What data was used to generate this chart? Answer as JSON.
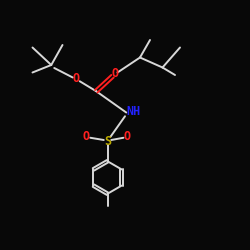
{
  "bg_color": "#080808",
  "line_color": "#d8d8d8",
  "oxygen_color": "#ff2020",
  "nitrogen_color": "#2222ff",
  "sulfur_color": "#bbaa00",
  "lw": 1.4,
  "font_size": 8.5,
  "figsize": [
    2.5,
    2.5
  ],
  "dpi": 100,
  "xlim": [
    0,
    10
  ],
  "ylim": [
    0,
    10
  ],
  "tol_r": 0.65
}
